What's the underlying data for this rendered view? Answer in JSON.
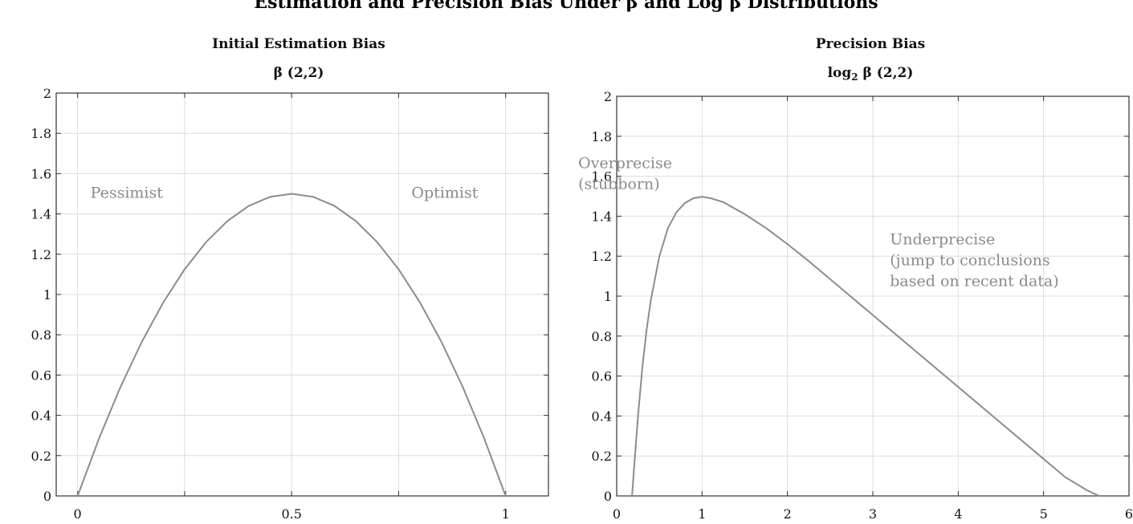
{
  "figure": {
    "title": "Estimation and Precision Bias Under β and Log β Distributions"
  },
  "chart_data": [
    {
      "type": "line",
      "title": "Initial Estimation Bias",
      "subtitle": "β (2,2)",
      "xlabel": "",
      "ylabel": "",
      "xlim": [
        -0.05,
        1.1
      ],
      "ylim": [
        0,
        2
      ],
      "x_ticks": [
        0,
        0.5,
        1
      ],
      "x_tick_labels": [
        "0",
        "0.5",
        "1"
      ],
      "y_ticks": [
        0,
        0.2,
        0.4,
        0.6,
        0.8,
        1,
        1.2,
        1.4,
        1.6,
        1.8,
        2
      ],
      "y_tick_labels": [
        "0",
        "0.2",
        "0.4",
        "0.6",
        "0.8",
        "1",
        "1.2",
        "1.4",
        "1.6",
        "1.8",
        "2"
      ],
      "grid_x": [
        0,
        0.25,
        0.5,
        0.75,
        1
      ],
      "grid_y": [
        0,
        0.2,
        0.4,
        0.6,
        0.8,
        1,
        1.2,
        1.4,
        1.6,
        1.8,
        2
      ],
      "grid": true,
      "series": [
        {
          "color": "#8c8c8c",
          "x": [
            0,
            0.05,
            0.1,
            0.15,
            0.2,
            0.25,
            0.3,
            0.35,
            0.4,
            0.45,
            0.5,
            0.55,
            0.6,
            0.65,
            0.7,
            0.75,
            0.8,
            0.85,
            0.9,
            0.95,
            1
          ],
          "y": [
            0,
            0.285,
            0.54,
            0.765,
            0.96,
            1.125,
            1.26,
            1.365,
            1.44,
            1.485,
            1.5,
            1.485,
            1.44,
            1.365,
            1.26,
            1.125,
            0.96,
            0.765,
            0.54,
            0.285,
            0
          ]
        }
      ],
      "annotations": [
        {
          "lines": [
            "Pessimist"
          ],
          "x": 0.03,
          "y": 1.48
        },
        {
          "lines": [
            "Optimist"
          ],
          "x": 0.78,
          "y": 1.48
        }
      ]
    },
    {
      "type": "line",
      "title": "Precision Bias",
      "subtitle_main": "log",
      "subtitle_sub": "2",
      "subtitle_rest": " β (2,2)",
      "xlabel": "",
      "ylabel": "",
      "xlim": [
        0,
        6
      ],
      "ylim": [
        0,
        2
      ],
      "x_ticks": [
        0,
        1,
        2,
        3,
        4,
        5,
        6
      ],
      "x_tick_labels": [
        "0",
        "1",
        "2",
        "3",
        "4",
        "5",
        "6"
      ],
      "y_ticks": [
        0,
        0.2,
        0.4,
        0.6,
        0.8,
        1,
        1.2,
        1.4,
        1.6,
        1.8,
        2
      ],
      "y_tick_labels": [
        "0",
        "0.2",
        "0.4",
        "0.6",
        "0.8",
        "1",
        "1.2",
        "1.4",
        "1.6",
        "1.8",
        "2"
      ],
      "grid_x": [
        0,
        1,
        2,
        3,
        4,
        5,
        6
      ],
      "grid_y": [
        0,
        0.2,
        0.4,
        0.6,
        0.8,
        1,
        1.2,
        1.4,
        1.6,
        1.8,
        2
      ],
      "grid": true,
      "series": [
        {
          "color": "#8c8c8c",
          "x": [
            0.18,
            0.2,
            0.25,
            0.3,
            0.35,
            0.4,
            0.5,
            0.6,
            0.7,
            0.8,
            0.9,
            1.0,
            1.1,
            1.25,
            1.5,
            1.75,
            2.0,
            2.25,
            2.5,
            2.75,
            3.0,
            3.25,
            3.5,
            3.75,
            4.0,
            4.25,
            4.5,
            4.75,
            5.0,
            5.25,
            5.5,
            5.65
          ],
          "y": [
            0.0,
            0.12,
            0.4,
            0.64,
            0.83,
            0.98,
            1.2,
            1.34,
            1.42,
            1.466,
            1.49,
            1.497,
            1.49,
            1.47,
            1.41,
            1.34,
            1.26,
            1.175,
            1.085,
            0.995,
            0.905,
            0.815,
            0.725,
            0.635,
            0.545,
            0.455,
            0.365,
            0.275,
            0.185,
            0.095,
            0.03,
            0.0
          ]
        }
      ],
      "annotations": [
        {
          "lines": [
            "Overprecise",
            "(stubborn)"
          ],
          "x": -0.45,
          "y": 1.64
        },
        {
          "lines": [
            "Underprecise",
            "(jump to conclusions",
            "based on recent data)"
          ],
          "x": 3.2,
          "y": 1.26
        }
      ]
    }
  ]
}
